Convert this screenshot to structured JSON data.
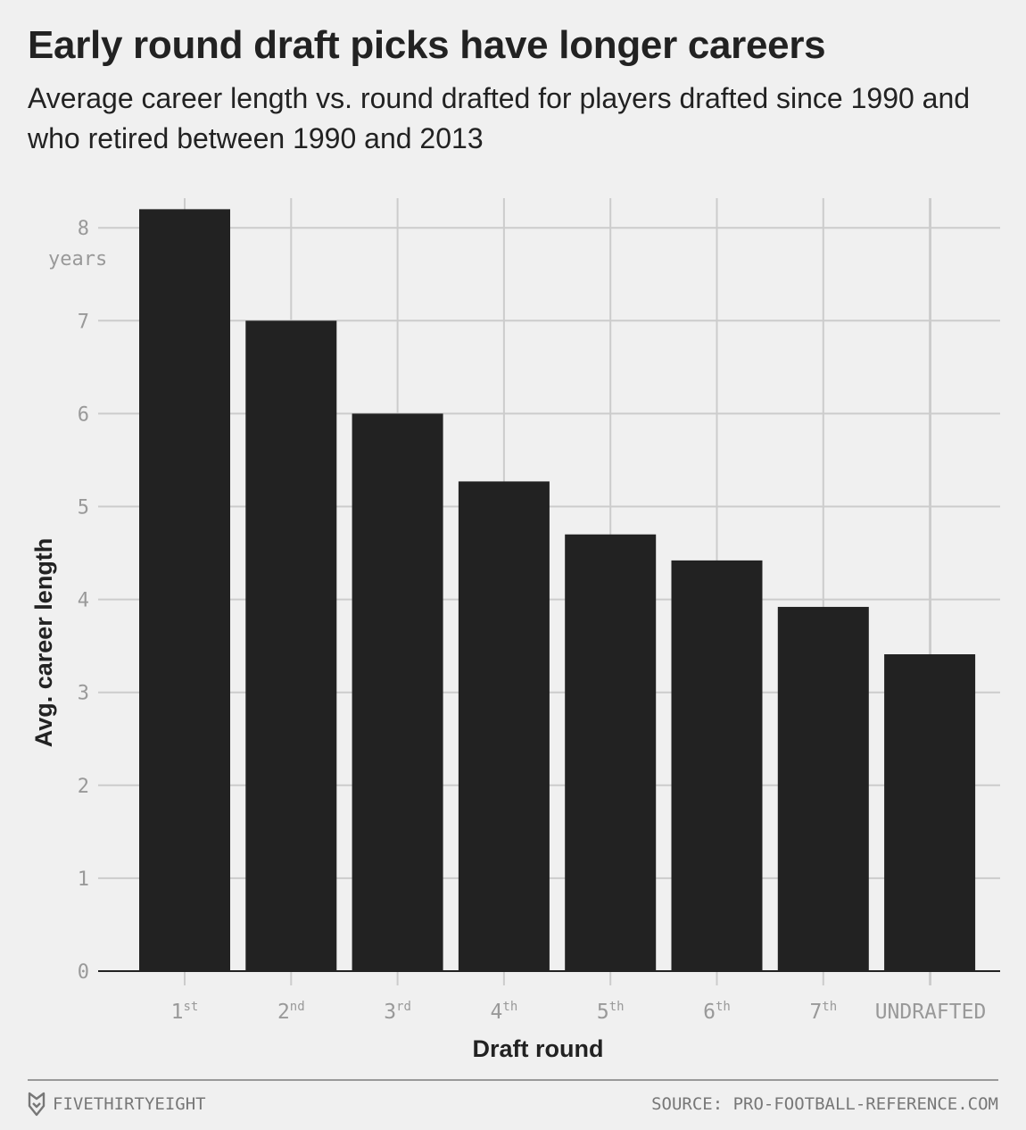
{
  "chart_data": {
    "type": "bar",
    "title": "Early round draft picks have longer careers",
    "subtitle": "Average career length vs. round drafted for players drafted since 1990 and who retired between 1990 and 2013",
    "xlabel": "Draft round",
    "ylabel": "Avg. career length",
    "y_unit_label": "years",
    "categories": [
      {
        "base": "1",
        "sup": "st"
      },
      {
        "base": "2",
        "sup": "nd"
      },
      {
        "base": "3",
        "sup": "rd"
      },
      {
        "base": "4",
        "sup": "th"
      },
      {
        "base": "5",
        "sup": "th"
      },
      {
        "base": "6",
        "sup": "th"
      },
      {
        "base": "7",
        "sup": "th"
      },
      {
        "base": "UNDRAFTED",
        "sup": ""
      }
    ],
    "values": [
      8.2,
      7.0,
      6.0,
      5.27,
      4.7,
      4.42,
      3.92,
      3.41
    ],
    "ylim": [
      0,
      8
    ],
    "yticks": [
      0,
      1,
      2,
      3,
      4,
      5,
      6,
      7,
      8
    ],
    "grid": true,
    "bar_color": "#222222",
    "grid_color": "#cccccc"
  },
  "footer": {
    "brand": "FIVETHIRTYEIGHT",
    "source": "SOURCE: PRO-FOOTBALL-REFERENCE.COM"
  }
}
